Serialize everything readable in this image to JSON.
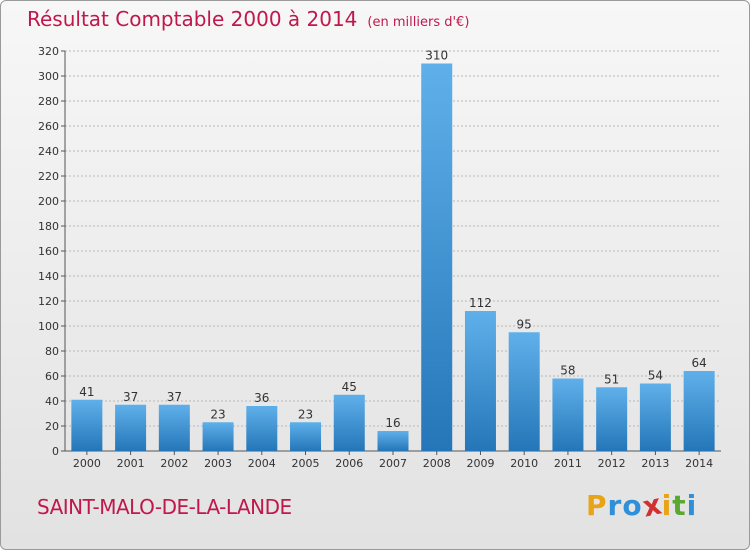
{
  "chart_data": {
    "type": "bar",
    "title": "Résultat Comptable 2000 à 2014",
    "subtitle": "(en milliers d'€)",
    "categories": [
      "2000",
      "2001",
      "2002",
      "2003",
      "2004",
      "2005",
      "2006",
      "2007",
      "2008",
      "2009",
      "2010",
      "2011",
      "2012",
      "2013",
      "2014"
    ],
    "values": [
      41,
      37,
      37,
      23,
      36,
      23,
      45,
      16,
      310,
      112,
      95,
      58,
      51,
      54,
      64
    ],
    "ylim": [
      0,
      320
    ],
    "yticks": [
      0,
      20,
      40,
      60,
      80,
      100,
      120,
      140,
      160,
      180,
      200,
      220,
      240,
      260,
      280,
      300,
      320
    ],
    "grid": true,
    "xlabel": "",
    "ylabel": ""
  },
  "commune": "SAINT-MALO-DE-LA-LANDE",
  "logo": {
    "letters": [
      "P",
      "r",
      "o",
      "x",
      "i",
      "t",
      "i"
    ],
    "colors": [
      "#e8a317",
      "#2f8fd8",
      "#2f8fd8",
      "#d03030",
      "#e8a317",
      "#5aa832",
      "#2f8fd8"
    ]
  },
  "colors": {
    "title": "#c0174c",
    "bar_light": "#5fb0ea",
    "bar_dark": "#2576b8",
    "grid": "#b8b8b8"
  }
}
